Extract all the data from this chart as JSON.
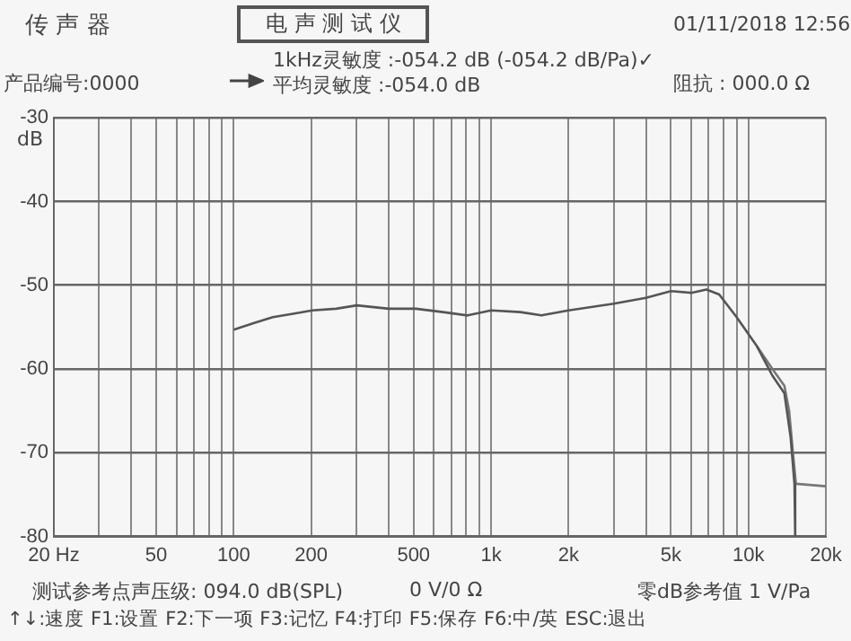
{
  "chart_data": {
    "type": "line",
    "title": "电 声 测 试 仪",
    "subtitle": "传 声 器",
    "ylabel": "dB",
    "annotations": [
      "01/11/2018 12:56",
      "产品编号:0000",
      "1kHz灵敏度 :-054.2 dB (-054.2 dB/Pa)✓",
      "平均灵敏度 :-054.0 dB",
      "阻抗 : 000.0 Ω",
      "测试参考点声压级: 094.0 dB(SPL)",
      "0 V/0 Ω",
      "零dB参考值 1 V/Pa",
      "↑↓:速度  F1:设置  F2:下一项  F3:记忆  F4:打印  F5:保存  F6:中/英  ESC:退出"
    ],
    "log": "x",
    "xlim": [
      20,
      20000
    ],
    "ylim": [
      -80,
      -30
    ],
    "xticks": [
      {
        "value": 20,
        "label": "20 Hz"
      },
      {
        "value": 30,
        "label": null
      },
      {
        "value": 40,
        "label": null
      },
      {
        "value": 50,
        "label": "50"
      },
      {
        "value": 60,
        "label": null
      },
      {
        "value": 70,
        "label": null
      },
      {
        "value": 80,
        "label": null
      },
      {
        "value": 90,
        "label": null
      },
      {
        "value": 100,
        "label": "100"
      },
      {
        "value": 200,
        "label": "200"
      },
      {
        "value": 300,
        "label": null
      },
      {
        "value": 400,
        "label": null
      },
      {
        "value": 500,
        "label": "500"
      },
      {
        "value": 600,
        "label": null
      },
      {
        "value": 700,
        "label": null
      },
      {
        "value": 800,
        "label": null
      },
      {
        "value": 900,
        "label": null
      },
      {
        "value": 1000,
        "label": "1k"
      },
      {
        "value": 2000,
        "label": "2k"
      },
      {
        "value": 3000,
        "label": null
      },
      {
        "value": 4000,
        "label": null
      },
      {
        "value": 5000,
        "label": "5k"
      },
      {
        "value": 6000,
        "label": null
      },
      {
        "value": 7000,
        "label": null
      },
      {
        "value": 8000,
        "label": null
      },
      {
        "value": 9000,
        "label": null
      },
      {
        "value": 10000,
        "label": "10k"
      },
      {
        "value": 20000,
        "label": "20k"
      }
    ],
    "yticks": [
      -80,
      -70,
      -60,
      -50,
      -40,
      -30
    ],
    "grid": true,
    "marker": "none",
    "line_style": "solid",
    "series": [
      {
        "color": "#555555",
        "x": [
          100,
          120,
          142,
          170,
          202,
          250,
          301,
          400,
          510,
          650,
          811,
          1000,
          1300,
          1570,
          2000,
          3000,
          4000,
          5000,
          6000,
          6870,
          7700,
          9000,
          10800,
          12400,
          13800,
          14600,
          15100,
          15200
        ],
        "values": [
          -55.3,
          -54.5,
          -53.8,
          -53.4,
          -53.0,
          -52.8,
          -52.4,
          -52.8,
          -52.8,
          -53.2,
          -53.6,
          -53.0,
          -53.2,
          -53.6,
          -53.0,
          -52.2,
          -51.5,
          -50.7,
          -50.9,
          -50.5,
          -51.1,
          -53.8,
          -57.3,
          -60.8,
          -62.9,
          -68.2,
          -73.7,
          -80
        ]
      },
      {
        "color": "#777777",
        "x": [
          10800,
          12400,
          13800,
          14400,
          14900,
          15300,
          20000
        ],
        "values": [
          -57.3,
          -60.0,
          -62.0,
          -65.0,
          -70.0,
          -73.7,
          -74.0
        ]
      }
    ]
  }
}
